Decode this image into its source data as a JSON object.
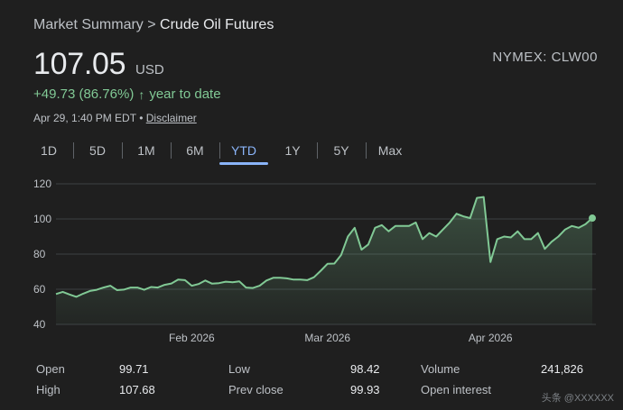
{
  "breadcrumb": {
    "parent": "Market Summary",
    "separator": ">",
    "current": "Crude Oil Futures"
  },
  "quote": {
    "price": "107.05",
    "currency": "USD",
    "exchange_ticker": "NYMEX: CLW00",
    "change": "+49.73 (86.76%)",
    "change_arrow": "↑",
    "change_period": "year to date",
    "timestamp": "Apr 29, 1:40 PM EDT",
    "separator": "•",
    "disclaimer": "Disclaimer"
  },
  "tabs": [
    {
      "label": "1D",
      "active": false
    },
    {
      "label": "5D",
      "active": false
    },
    {
      "label": "1M",
      "active": false
    },
    {
      "label": "6M",
      "active": false
    },
    {
      "label": "YTD",
      "active": true
    },
    {
      "label": "1Y",
      "active": false
    },
    {
      "label": "5Y",
      "active": false
    },
    {
      "label": "Max",
      "active": false
    }
  ],
  "colors": {
    "line": "#81c995",
    "gridline": "#3c4043",
    "active_tab": "#8ab4f8",
    "background": "#1f1f1f"
  },
  "chart_data": {
    "type": "area",
    "x_tick_labels": [
      "Feb 2026",
      "Mar 2026",
      "Apr 2026"
    ],
    "y_ticks": [
      40,
      60,
      80,
      100,
      120
    ],
    "ylim": [
      40,
      120
    ],
    "grid": true,
    "series": [
      {
        "values": [
          57.3,
          58.5,
          57,
          55.7,
          57.5,
          59,
          59.7,
          61,
          62,
          59.5,
          59.8,
          61,
          61,
          59.7,
          61.3,
          61,
          62.5,
          63.3,
          65.5,
          65.2,
          62,
          63,
          65,
          63.2,
          63.5,
          64.3,
          64,
          64.5,
          61,
          60.7,
          62,
          65,
          66.5,
          66.5,
          66.2,
          65.5,
          65.5,
          65.2,
          66.8,
          70.5,
          74.5,
          74.6,
          79.5,
          90,
          95,
          82.5,
          85.5,
          95,
          96.5,
          93,
          96,
          96,
          96,
          98,
          88.5,
          92,
          90,
          94,
          98,
          103,
          101.5,
          100.5,
          112,
          112.5,
          75.5,
          88.5,
          90,
          89.5,
          93,
          88.5,
          88.5,
          92,
          83,
          87,
          90,
          94,
          96,
          95,
          97,
          100.5
        ]
      }
    ]
  },
  "stats": [
    {
      "label": "Open",
      "value": "99.71"
    },
    {
      "label": "Low",
      "value": "98.42"
    },
    {
      "label": "Volume",
      "value": "241,826"
    },
    {
      "label": "High",
      "value": "107.68"
    },
    {
      "label": "Prev close",
      "value": "99.93"
    },
    {
      "label": "Open interest",
      "value": ""
    }
  ],
  "watermark": "头条 @XXXXXX"
}
